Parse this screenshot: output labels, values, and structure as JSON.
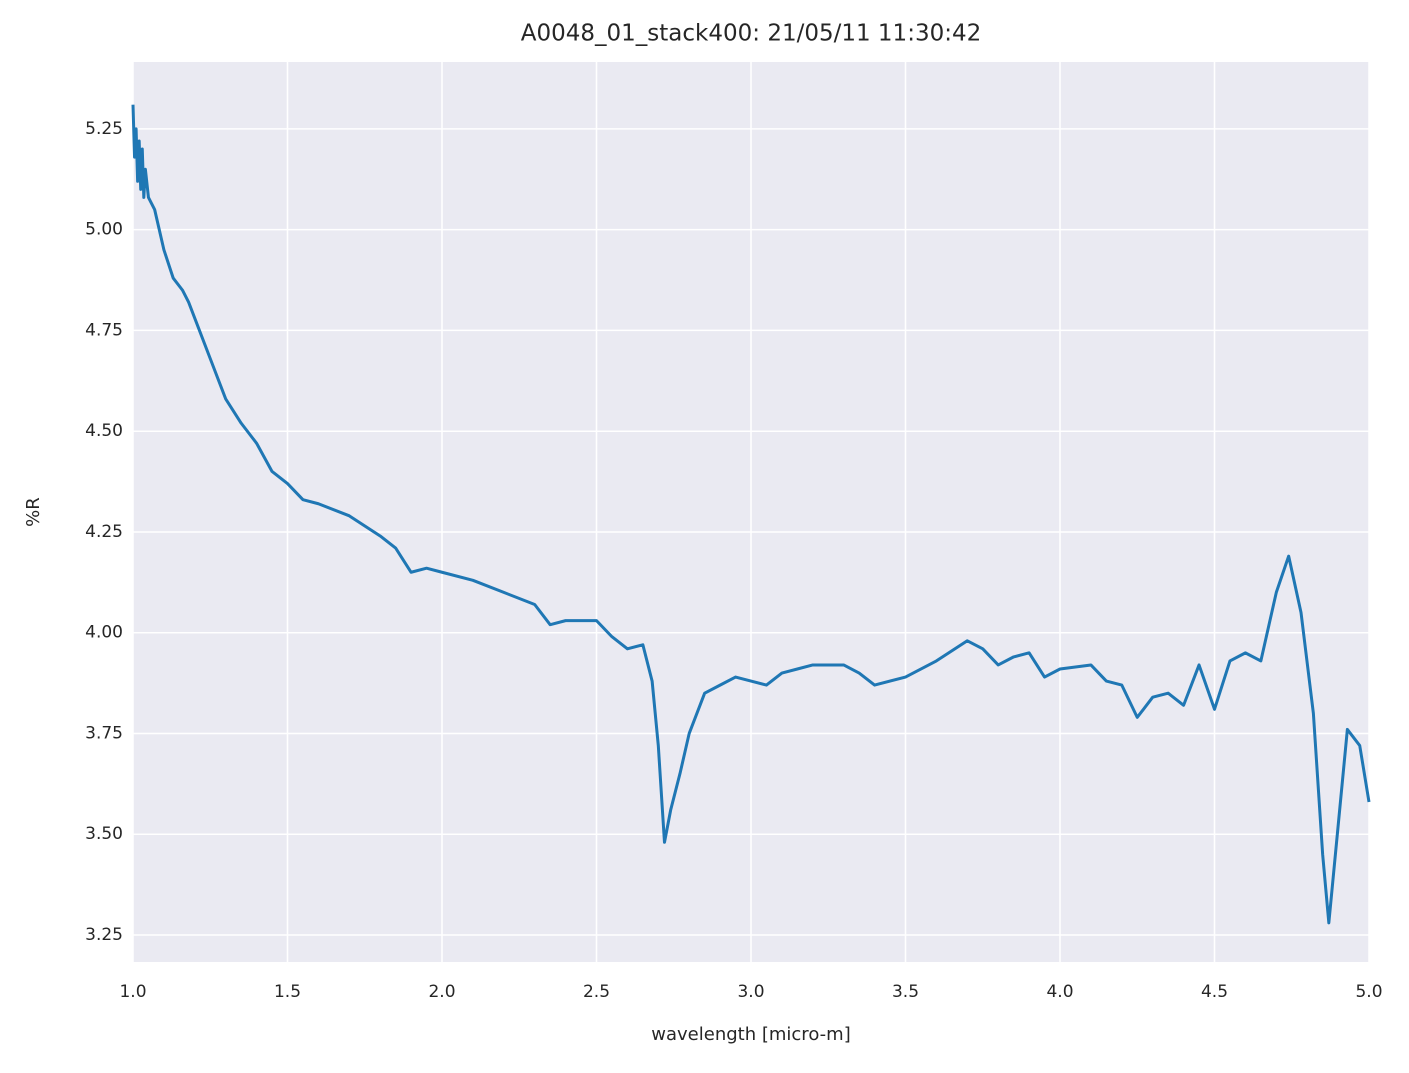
{
  "chart_data": {
    "type": "line",
    "title": "A0048_01_stack400:  21/05/11 11:30:42",
    "xlabel": "wavelength [micro-m]",
    "ylabel": "%R",
    "grid": true,
    "xlim": [
      1,
      5
    ],
    "ylim": [
      3.183,
      5.416
    ],
    "xticks": [
      {
        "value": 1,
        "label": "1.0"
      },
      1.5,
      {
        "value": 2,
        "label": "2.0"
      },
      2.5,
      {
        "value": 3,
        "label": "3.0"
      },
      3.5,
      {
        "value": 4,
        "label": "4.0"
      },
      4.5,
      {
        "value": 5,
        "label": "5.0"
      }
    ],
    "yticks": [
      3.25,
      {
        "value": 3.5,
        "label": "3.50"
      },
      3.75,
      {
        "value": 4,
        "label": "4.00"
      },
      4.25,
      {
        "value": 4.5,
        "label": "4.50"
      },
      4.75,
      {
        "value": 5,
        "label": "5.00"
      },
      5.25
    ],
    "series": [
      {
        "color": "#1f77b4",
        "x": [
          1.0,
          1.005,
          1.01,
          1.015,
          1.02,
          1.025,
          1.03,
          1.035,
          1.04,
          1.05,
          1.07,
          1.1,
          1.13,
          1.16,
          1.18,
          1.2,
          1.25,
          1.3,
          1.35,
          1.4,
          1.45,
          1.5,
          1.55,
          1.6,
          1.7,
          1.8,
          1.85,
          1.9,
          1.95,
          2.0,
          2.1,
          2.2,
          2.3,
          2.35,
          2.4,
          2.5,
          2.55,
          2.6,
          2.65,
          2.68,
          2.7,
          2.72,
          2.74,
          2.77,
          2.8,
          2.85,
          2.9,
          2.95,
          3.0,
          3.05,
          3.1,
          3.15,
          3.2,
          3.3,
          3.35,
          3.4,
          3.5,
          3.6,
          3.7,
          3.75,
          3.8,
          3.85,
          3.9,
          3.95,
          4.0,
          4.1,
          4.15,
          4.2,
          4.25,
          4.3,
          4.35,
          4.4,
          4.45,
          4.5,
          4.55,
          4.6,
          4.65,
          4.7,
          4.74,
          4.78,
          4.82,
          4.85,
          4.87,
          4.9,
          4.93,
          4.97,
          5.0
        ],
        "values": [
          5.31,
          5.18,
          5.25,
          5.12,
          5.22,
          5.1,
          5.2,
          5.08,
          5.15,
          5.08,
          5.05,
          4.95,
          4.88,
          4.85,
          4.82,
          4.78,
          4.68,
          4.58,
          4.52,
          4.47,
          4.4,
          4.37,
          4.33,
          4.32,
          4.29,
          4.24,
          4.21,
          4.15,
          4.16,
          4.15,
          4.13,
          4.1,
          4.07,
          4.02,
          4.03,
          4.03,
          3.99,
          3.96,
          3.97,
          3.88,
          3.72,
          3.48,
          3.56,
          3.65,
          3.75,
          3.85,
          3.87,
          3.89,
          3.88,
          3.87,
          3.9,
          3.91,
          3.92,
          3.92,
          3.9,
          3.87,
          3.89,
          3.93,
          3.98,
          3.96,
          3.92,
          3.94,
          3.95,
          3.89,
          3.91,
          3.92,
          3.88,
          3.87,
          3.79,
          3.84,
          3.85,
          3.82,
          3.92,
          3.81,
          3.93,
          3.95,
          3.93,
          4.1,
          4.19,
          4.05,
          3.8,
          3.45,
          3.28,
          3.52,
          3.76,
          3.72,
          3.58
        ]
      }
    ]
  }
}
